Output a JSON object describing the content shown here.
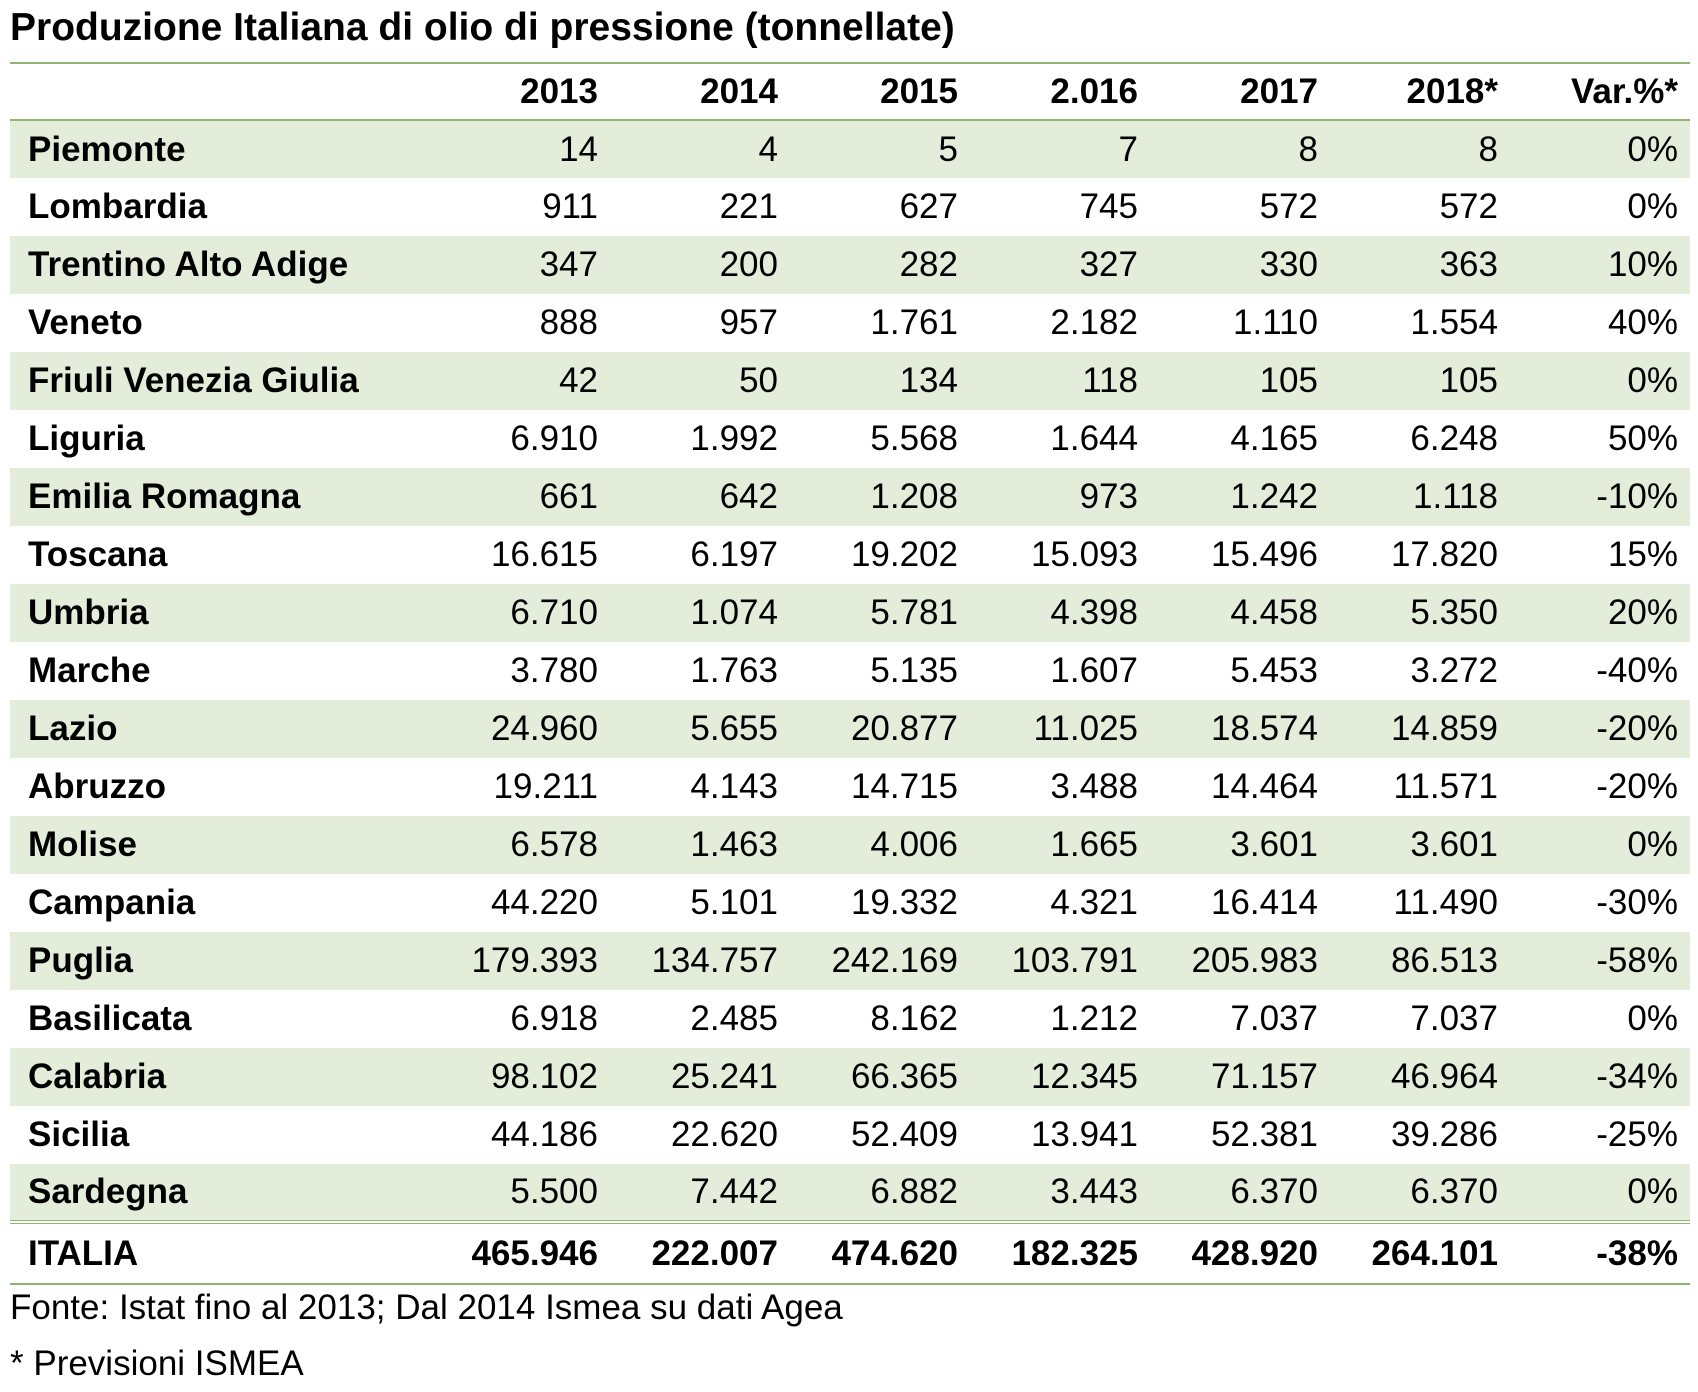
{
  "title": "Produzione Italiana di olio di pressione (tonnellate)",
  "table": {
    "columns": [
      "",
      "2013",
      "2014",
      "2015",
      "2.016",
      "2017",
      "2018*",
      "Var.%*"
    ],
    "rows": [
      [
        "Piemonte",
        "14",
        "4",
        "5",
        "7",
        "8",
        "8",
        "0%"
      ],
      [
        "Lombardia",
        "911",
        "221",
        "627",
        "745",
        "572",
        "572",
        "0%"
      ],
      [
        "Trentino Alto Adige",
        "347",
        "200",
        "282",
        "327",
        "330",
        "363",
        "10%"
      ],
      [
        "Veneto",
        "888",
        "957",
        "1.761",
        "2.182",
        "1.110",
        "1.554",
        "40%"
      ],
      [
        "Friuli Venezia Giulia",
        "42",
        "50",
        "134",
        "118",
        "105",
        "105",
        "0%"
      ],
      [
        "Liguria",
        "6.910",
        "1.992",
        "5.568",
        "1.644",
        "4.165",
        "6.248",
        "50%"
      ],
      [
        "Emilia Romagna",
        "661",
        "642",
        "1.208",
        "973",
        "1.242",
        "1.118",
        "-10%"
      ],
      [
        "Toscana",
        "16.615",
        "6.197",
        "19.202",
        "15.093",
        "15.496",
        "17.820",
        "15%"
      ],
      [
        "Umbria",
        "6.710",
        "1.074",
        "5.781",
        "4.398",
        "4.458",
        "5.350",
        "20%"
      ],
      [
        "Marche",
        "3.780",
        "1.763",
        "5.135",
        "1.607",
        "5.453",
        "3.272",
        "-40%"
      ],
      [
        "Lazio",
        "24.960",
        "5.655",
        "20.877",
        "11.025",
        "18.574",
        "14.859",
        "-20%"
      ],
      [
        "Abruzzo",
        "19.211",
        "4.143",
        "14.715",
        "3.488",
        "14.464",
        "11.571",
        "-20%"
      ],
      [
        "Molise",
        "6.578",
        "1.463",
        "4.006",
        "1.665",
        "3.601",
        "3.601",
        "0%"
      ],
      [
        "Campania",
        "44.220",
        "5.101",
        "19.332",
        "4.321",
        "16.414",
        "11.490",
        "-30%"
      ],
      [
        "Puglia",
        "179.393",
        "134.757",
        "242.169",
        "103.791",
        "205.983",
        "86.513",
        "-58%"
      ],
      [
        "Basilicata",
        "6.918",
        "2.485",
        "8.162",
        "1.212",
        "7.037",
        "7.037",
        "0%"
      ],
      [
        "Calabria",
        "98.102",
        "25.241",
        "66.365",
        "12.345",
        "71.157",
        "46.964",
        "-34%"
      ],
      [
        "Sicilia",
        "44.186",
        "22.620",
        "52.409",
        "13.941",
        "52.381",
        "39.286",
        "-25%"
      ],
      [
        "Sardegna",
        "5.500",
        "7.442",
        "6.882",
        "3.443",
        "6.370",
        "6.370",
        "0%"
      ]
    ],
    "total": [
      "ITALIA",
      "465.946",
      "222.007",
      "474.620",
      "182.325",
      "428.920",
      "264.101",
      "-38%"
    ]
  },
  "footnotes": {
    "source": "Fonte: Istat fino al 2013; Dal 2014 Ismea su dati Agea",
    "note": "* Previsioni ISMEA"
  },
  "colors": {
    "band": "#e3edda",
    "rule": "#8fb56f"
  }
}
